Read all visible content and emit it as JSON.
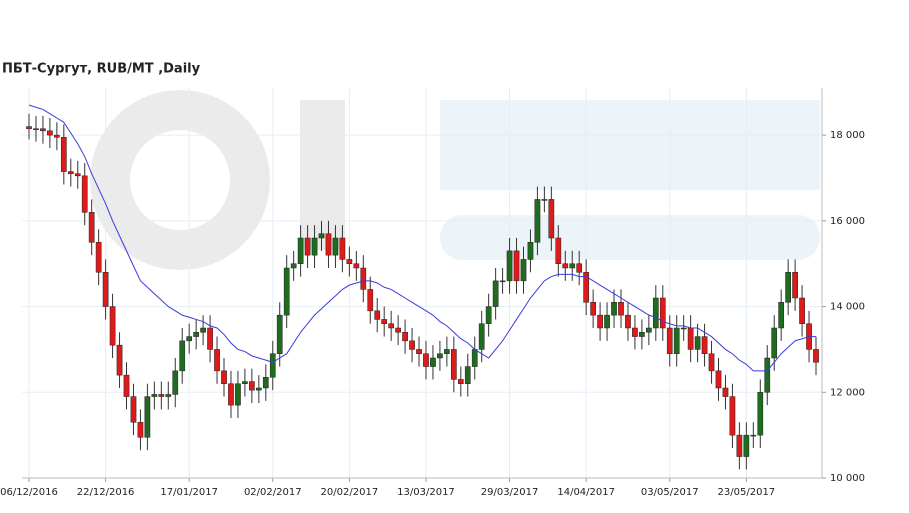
{
  "chart_data": {
    "type": "candlestick",
    "title": "ПБТ-Сургут,  RUB/MT ,Daily",
    "categories": [
      "06/12/2016",
      null,
      null,
      null,
      null,
      null,
      null,
      null,
      null,
      null,
      null,
      "22/12/2016",
      null,
      null,
      null,
      null,
      null,
      null,
      null,
      null,
      null,
      null,
      null,
      "17/01/2017",
      null,
      null,
      null,
      null,
      null,
      null,
      null,
      null,
      null,
      null,
      null,
      "02/02/2017",
      null,
      null,
      null,
      null,
      null,
      null,
      null,
      null,
      null,
      null,
      "20/02/2017",
      null,
      null,
      null,
      null,
      null,
      null,
      null,
      null,
      null,
      null,
      "13/03/2017",
      null,
      null,
      null,
      null,
      null,
      null,
      null,
      null,
      null,
      null,
      null,
      "29/03/2017",
      null,
      null,
      null,
      null,
      null,
      null,
      null,
      null,
      null,
      null,
      "14/04/2017",
      null,
      null,
      null,
      null,
      null,
      null,
      null,
      null,
      null,
      null,
      null,
      "03/05/2017",
      null,
      null,
      null,
      null,
      null,
      null,
      null,
      null,
      null,
      null,
      "23/05/2017",
      null,
      null,
      null,
      null,
      null,
      null,
      null,
      null,
      null,
      null
    ],
    "open": [
      18200,
      18150,
      18150,
      18100,
      18000,
      17950,
      17150,
      17100,
      17050,
      16200,
      15500,
      14800,
      14000,
      13100,
      12400,
      11900,
      11300,
      10950,
      11900,
      11950,
      11900,
      11950,
      12500,
      13200,
      13300,
      13400,
      13500,
      13000,
      12500,
      12200,
      11700,
      12200,
      12250,
      12050,
      12100,
      12350,
      12900,
      13800,
      14900,
      15000,
      15600,
      15200,
      15600,
      15700,
      15200,
      15600,
      15100,
      15000,
      14900,
      14400,
      13900,
      13700,
      13600,
      13500,
      13400,
      13200,
      13000,
      12900,
      12600,
      12800,
      12900,
      13000,
      12300,
      12200,
      12600,
      13000,
      13600,
      14000,
      14600,
      14600,
      15300,
      14600,
      15100,
      15500,
      16500,
      16500,
      15600,
      15000,
      14900,
      15000,
      14800,
      14100,
      13800,
      13500,
      13800,
      14100,
      13800,
      13500,
      13300,
      13400,
      13500,
      14200,
      13500,
      12900,
      13500,
      13500,
      13000,
      13300,
      12900,
      12500,
      12100,
      11900,
      11000,
      10500,
      11000,
      11000,
      12000,
      12800,
      13500,
      14100,
      14800,
      14200,
      13600,
      13000
    ],
    "high": [
      18500,
      18450,
      18450,
      18400,
      18300,
      18250,
      17450,
      17400,
      17350,
      16500,
      15800,
      15100,
      14300,
      13400,
      12700,
      12200,
      11600,
      12200,
      12250,
      12250,
      12250,
      12800,
      13500,
      13600,
      13700,
      13800,
      13800,
      13300,
      12800,
      12500,
      12500,
      12550,
      12550,
      12400,
      12650,
      13200,
      14100,
      15200,
      15300,
      15900,
      15900,
      15900,
      16000,
      16000,
      15900,
      15900,
      15400,
      15300,
      15200,
      14700,
      14200,
      14000,
      13900,
      13800,
      13700,
      13500,
      13300,
      13200,
      13100,
      13200,
      13300,
      13300,
      12600,
      12900,
      13300,
      13900,
      14300,
      14900,
      14900,
      15600,
      15600,
      15400,
      15800,
      16800,
      16800,
      16800,
      15900,
      15300,
      15300,
      15300,
      15100,
      14400,
      14100,
      14100,
      14400,
      14400,
      14100,
      13800,
      13700,
      13800,
      14500,
      14500,
      13800,
      13800,
      13800,
      13800,
      13600,
      13600,
      13200,
      12800,
      12400,
      12200,
      11300,
      11300,
      11300,
      12300,
      13100,
      13800,
      14400,
      15100,
      15100,
      14500,
      13900,
      13300
    ],
    "low": [
      17900,
      17850,
      17800,
      17700,
      17650,
      16850,
      16800,
      16750,
      15900,
      15200,
      14500,
      13700,
      12800,
      12100,
      11600,
      11000,
      10650,
      10650,
      11600,
      11600,
      11600,
      11650,
      12200,
      12900,
      13000,
      13100,
      12700,
      12200,
      11900,
      11400,
      11400,
      11900,
      11750,
      11750,
      11800,
      12050,
      12600,
      13500,
      14600,
      14700,
      14900,
      14900,
      15300,
      14900,
      14900,
      14800,
      14700,
      14600,
      14100,
      13600,
      13400,
      13300,
      13200,
      13100,
      12900,
      12700,
      12600,
      12300,
      12300,
      12500,
      12600,
      12000,
      11900,
      11900,
      12300,
      12700,
      13300,
      13700,
      14300,
      14300,
      14300,
      14300,
      14800,
      15200,
      16200,
      15300,
      14700,
      14600,
      14600,
      14500,
      13800,
      13500,
      13200,
      13200,
      13500,
      13500,
      13200,
      13000,
      13000,
      13100,
      13200,
      13200,
      12600,
      12600,
      13200,
      12700,
      12700,
      12600,
      12200,
      11800,
      11600,
      10700,
      10200,
      10200,
      10700,
      10700,
      11700,
      12500,
      13200,
      13800,
      13900,
      13300,
      12700,
      12400
    ],
    "close": [
      18150,
      18150,
      18100,
      18000,
      17950,
      17150,
      17100,
      17050,
      16200,
      15500,
      14800,
      14000,
      13100,
      12400,
      11900,
      11300,
      10950,
      11900,
      11950,
      11900,
      11950,
      12500,
      13200,
      13300,
      13400,
      13500,
      13000,
      12500,
      12200,
      11700,
      12200,
      12250,
      12050,
      12100,
      12350,
      12900,
      13800,
      14900,
      15000,
      15600,
      15200,
      15600,
      15700,
      15200,
      15600,
      15100,
      15000,
      14900,
      14400,
      13900,
      13700,
      13600,
      13500,
      13400,
      13200,
      13000,
      12900,
      12600,
      12800,
      12900,
      13000,
      12300,
      12200,
      12600,
      13000,
      13600,
      14000,
      14600,
      14600,
      15300,
      14600,
      15100,
      15500,
      16500,
      16500,
      15600,
      15000,
      14900,
      15000,
      14800,
      14100,
      13800,
      13500,
      13800,
      14100,
      13800,
      13500,
      13300,
      13400,
      13500,
      14200,
      13500,
      12900,
      13500,
      13500,
      13000,
      13300,
      12900,
      12500,
      12100,
      11900,
      11000,
      10500,
      11000,
      11000,
      12000,
      12800,
      13500,
      14100,
      14800,
      14200,
      13600,
      13000,
      12700
    ],
    "ma": [
      18700,
      18650,
      18600,
      18500,
      18400,
      18300,
      18050,
      17800,
      17500,
      17100,
      16750,
      16400,
      16000,
      15650,
      15300,
      14950,
      14600,
      14450,
      14300,
      14150,
      14000,
      13900,
      13800,
      13750,
      13700,
      13650,
      13550,
      13500,
      13350,
      13150,
      13000,
      12950,
      12850,
      12800,
      12750,
      12700,
      12800,
      12900,
      13150,
      13400,
      13600,
      13800,
      13950,
      14100,
      14250,
      14400,
      14500,
      14550,
      14600,
      14600,
      14550,
      14450,
      14400,
      14300,
      14200,
      14100,
      14000,
      13900,
      13800,
      13650,
      13550,
      13400,
      13250,
      13150,
      13000,
      12900,
      12800,
      13000,
      13200,
      13450,
      13700,
      13950,
      14200,
      14400,
      14600,
      14700,
      14750,
      14750,
      14750,
      14700,
      14700,
      14600,
      14500,
      14400,
      14300,
      14200,
      14100,
      14000,
      13900,
      13800,
      13750,
      13650,
      13600,
      13550,
      13550,
      13500,
      13500,
      13400,
      13300,
      13150,
      13000,
      12900,
      12750,
      12650,
      12500,
      12500,
      12500,
      12700,
      12900,
      13050,
      13200,
      13250,
      13300,
      13300
    ],
    "up_color": "#1f6b1f",
    "down_color": "#dd1b1b",
    "ma_color": "#3b3bdc",
    "ylim": [
      10000,
      19100
    ],
    "yticks": [
      {
        "value": 10000,
        "label": "10 000"
      },
      {
        "value": 12000,
        "label": "12 000"
      },
      {
        "value": 14000,
        "label": "14 000"
      },
      {
        "value": 16000,
        "label": "16 000"
      },
      {
        "value": 18000,
        "label": "18 000"
      }
    ],
    "grid": true
  }
}
